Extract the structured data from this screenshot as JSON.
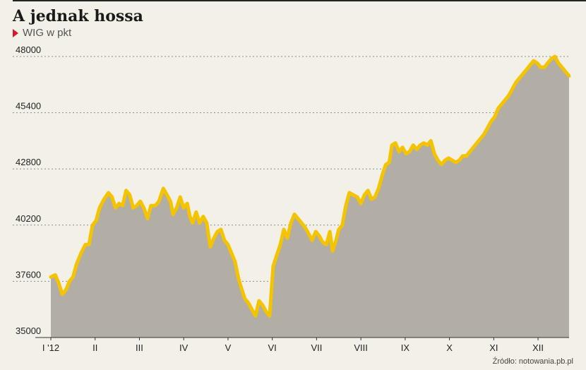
{
  "header": {
    "title": "A jednak hossa",
    "subtitle": "WIG w pkt"
  },
  "footer": {
    "source": "Źródło: notowania.pb.pl"
  },
  "colors": {
    "line": "#f5c400",
    "area": "#b2aea5",
    "grid": "#8a8a8a",
    "accent": "#d7182a"
  },
  "chart_data": {
    "type": "area",
    "title": "A jednak hossa",
    "subtitle": "WIG w pkt",
    "ylim": [
      35000,
      48000
    ],
    "y_ticks": [
      35000,
      37600,
      40200,
      42800,
      45400,
      48000
    ],
    "y_tick_labels": [
      "35000",
      "37600",
      "40200",
      "42800",
      "45400",
      "48000"
    ],
    "x_ticks": [
      "I '12",
      "II",
      "III",
      "IV",
      "V",
      "VI",
      "VII",
      "VIII",
      "IX",
      "X",
      "XI",
      "XII"
    ],
    "x_tick_positions": [
      0,
      1,
      2,
      3,
      4,
      5,
      6,
      7,
      8,
      9,
      10,
      11
    ],
    "xlim": [
      0,
      11.7
    ],
    "grid": true,
    "series": [
      {
        "name": "",
        "points": [
          [
            0.0,
            37800
          ],
          [
            0.1,
            37900
          ],
          [
            0.18,
            37500
          ],
          [
            0.26,
            37000
          ],
          [
            0.34,
            37200
          ],
          [
            0.42,
            37600
          ],
          [
            0.5,
            37800
          ],
          [
            0.58,
            38400
          ],
          [
            0.68,
            38900
          ],
          [
            0.78,
            39300
          ],
          [
            0.86,
            39300
          ],
          [
            0.94,
            40200
          ],
          [
            1.02,
            40400
          ],
          [
            1.1,
            41000
          ],
          [
            1.2,
            41400
          ],
          [
            1.3,
            41700
          ],
          [
            1.38,
            41500
          ],
          [
            1.46,
            41000
          ],
          [
            1.54,
            41200
          ],
          [
            1.62,
            41100
          ],
          [
            1.7,
            41800
          ],
          [
            1.78,
            41600
          ],
          [
            1.86,
            41000
          ],
          [
            1.94,
            41100
          ],
          [
            2.02,
            41300
          ],
          [
            2.1,
            41000
          ],
          [
            2.18,
            40500
          ],
          [
            2.26,
            41100
          ],
          [
            2.36,
            41100
          ],
          [
            2.44,
            41300
          ],
          [
            2.54,
            41900
          ],
          [
            2.62,
            41600
          ],
          [
            2.7,
            41300
          ],
          [
            2.76,
            40700
          ],
          [
            2.84,
            41000
          ],
          [
            2.92,
            41500
          ],
          [
            3.0,
            41000
          ],
          [
            3.08,
            41200
          ],
          [
            3.14,
            40600
          ],
          [
            3.2,
            40300
          ],
          [
            3.28,
            40800
          ],
          [
            3.36,
            40300
          ],
          [
            3.44,
            40600
          ],
          [
            3.52,
            40300
          ],
          [
            3.6,
            39200
          ],
          [
            3.68,
            39600
          ],
          [
            3.76,
            39900
          ],
          [
            3.84,
            40000
          ],
          [
            3.92,
            39500
          ],
          [
            4.0,
            39300
          ],
          [
            4.08,
            38900
          ],
          [
            4.16,
            38500
          ],
          [
            4.24,
            37700
          ],
          [
            4.3,
            37300
          ],
          [
            4.38,
            36800
          ],
          [
            4.46,
            36600
          ],
          [
            4.54,
            36300
          ],
          [
            4.62,
            36000
          ],
          [
            4.7,
            36700
          ],
          [
            4.78,
            36500
          ],
          [
            4.86,
            36200
          ],
          [
            4.94,
            36000
          ],
          [
            5.02,
            38300
          ],
          [
            5.1,
            38800
          ],
          [
            5.18,
            39300
          ],
          [
            5.26,
            40000
          ],
          [
            5.34,
            39600
          ],
          [
            5.42,
            40300
          ],
          [
            5.5,
            40700
          ],
          [
            5.58,
            40500
          ],
          [
            5.66,
            40300
          ],
          [
            5.74,
            40100
          ],
          [
            5.82,
            39800
          ],
          [
            5.9,
            39500
          ],
          [
            5.98,
            39900
          ],
          [
            6.06,
            39700
          ],
          [
            6.14,
            39400
          ],
          [
            6.22,
            39300
          ],
          [
            6.3,
            39900
          ],
          [
            6.36,
            39000
          ],
          [
            6.44,
            39500
          ],
          [
            6.5,
            40000
          ],
          [
            6.58,
            40200
          ],
          [
            6.66,
            41100
          ],
          [
            6.74,
            41700
          ],
          [
            6.82,
            41600
          ],
          [
            6.92,
            41500
          ],
          [
            7.0,
            41200
          ],
          [
            7.08,
            41600
          ],
          [
            7.16,
            41800
          ],
          [
            7.24,
            41400
          ],
          [
            7.32,
            41500
          ],
          [
            7.4,
            41900
          ],
          [
            7.48,
            42500
          ],
          [
            7.56,
            43000
          ],
          [
            7.64,
            43100
          ],
          [
            7.7,
            43900
          ],
          [
            7.78,
            44000
          ],
          [
            7.86,
            43600
          ],
          [
            7.94,
            43800
          ],
          [
            8.02,
            43500
          ],
          [
            8.1,
            43600
          ],
          [
            8.18,
            43900
          ],
          [
            8.26,
            43700
          ],
          [
            8.34,
            43900
          ],
          [
            8.42,
            44000
          ],
          [
            8.5,
            43900
          ],
          [
            8.58,
            44100
          ],
          [
            8.66,
            43500
          ],
          [
            8.74,
            43200
          ],
          [
            8.82,
            43000
          ],
          [
            8.9,
            43200
          ],
          [
            8.98,
            43300
          ],
          [
            9.06,
            43200
          ],
          [
            9.14,
            43100
          ],
          [
            9.22,
            43200
          ],
          [
            9.3,
            43400
          ],
          [
            9.38,
            43400
          ],
          [
            9.46,
            43600
          ],
          [
            9.54,
            43800
          ],
          [
            9.62,
            44000
          ],
          [
            9.7,
            44200
          ],
          [
            9.78,
            44400
          ],
          [
            9.86,
            44700
          ],
          [
            9.94,
            45000
          ],
          [
            10.02,
            45200
          ],
          [
            10.1,
            45600
          ],
          [
            10.18,
            45800
          ],
          [
            10.26,
            46000
          ],
          [
            10.34,
            46200
          ],
          [
            10.42,
            46500
          ],
          [
            10.5,
            46800
          ],
          [
            10.58,
            47000
          ],
          [
            10.66,
            47200
          ],
          [
            10.74,
            47400
          ],
          [
            10.82,
            47600
          ],
          [
            10.9,
            47800
          ],
          [
            10.98,
            47700
          ],
          [
            11.06,
            47500
          ],
          [
            11.14,
            47500
          ],
          [
            11.22,
            47700
          ],
          [
            11.3,
            47900
          ],
          [
            11.38,
            48000
          ],
          [
            11.46,
            47700
          ],
          [
            11.54,
            47500
          ],
          [
            11.62,
            47300
          ],
          [
            11.7,
            47100
          ]
        ]
      }
    ]
  }
}
